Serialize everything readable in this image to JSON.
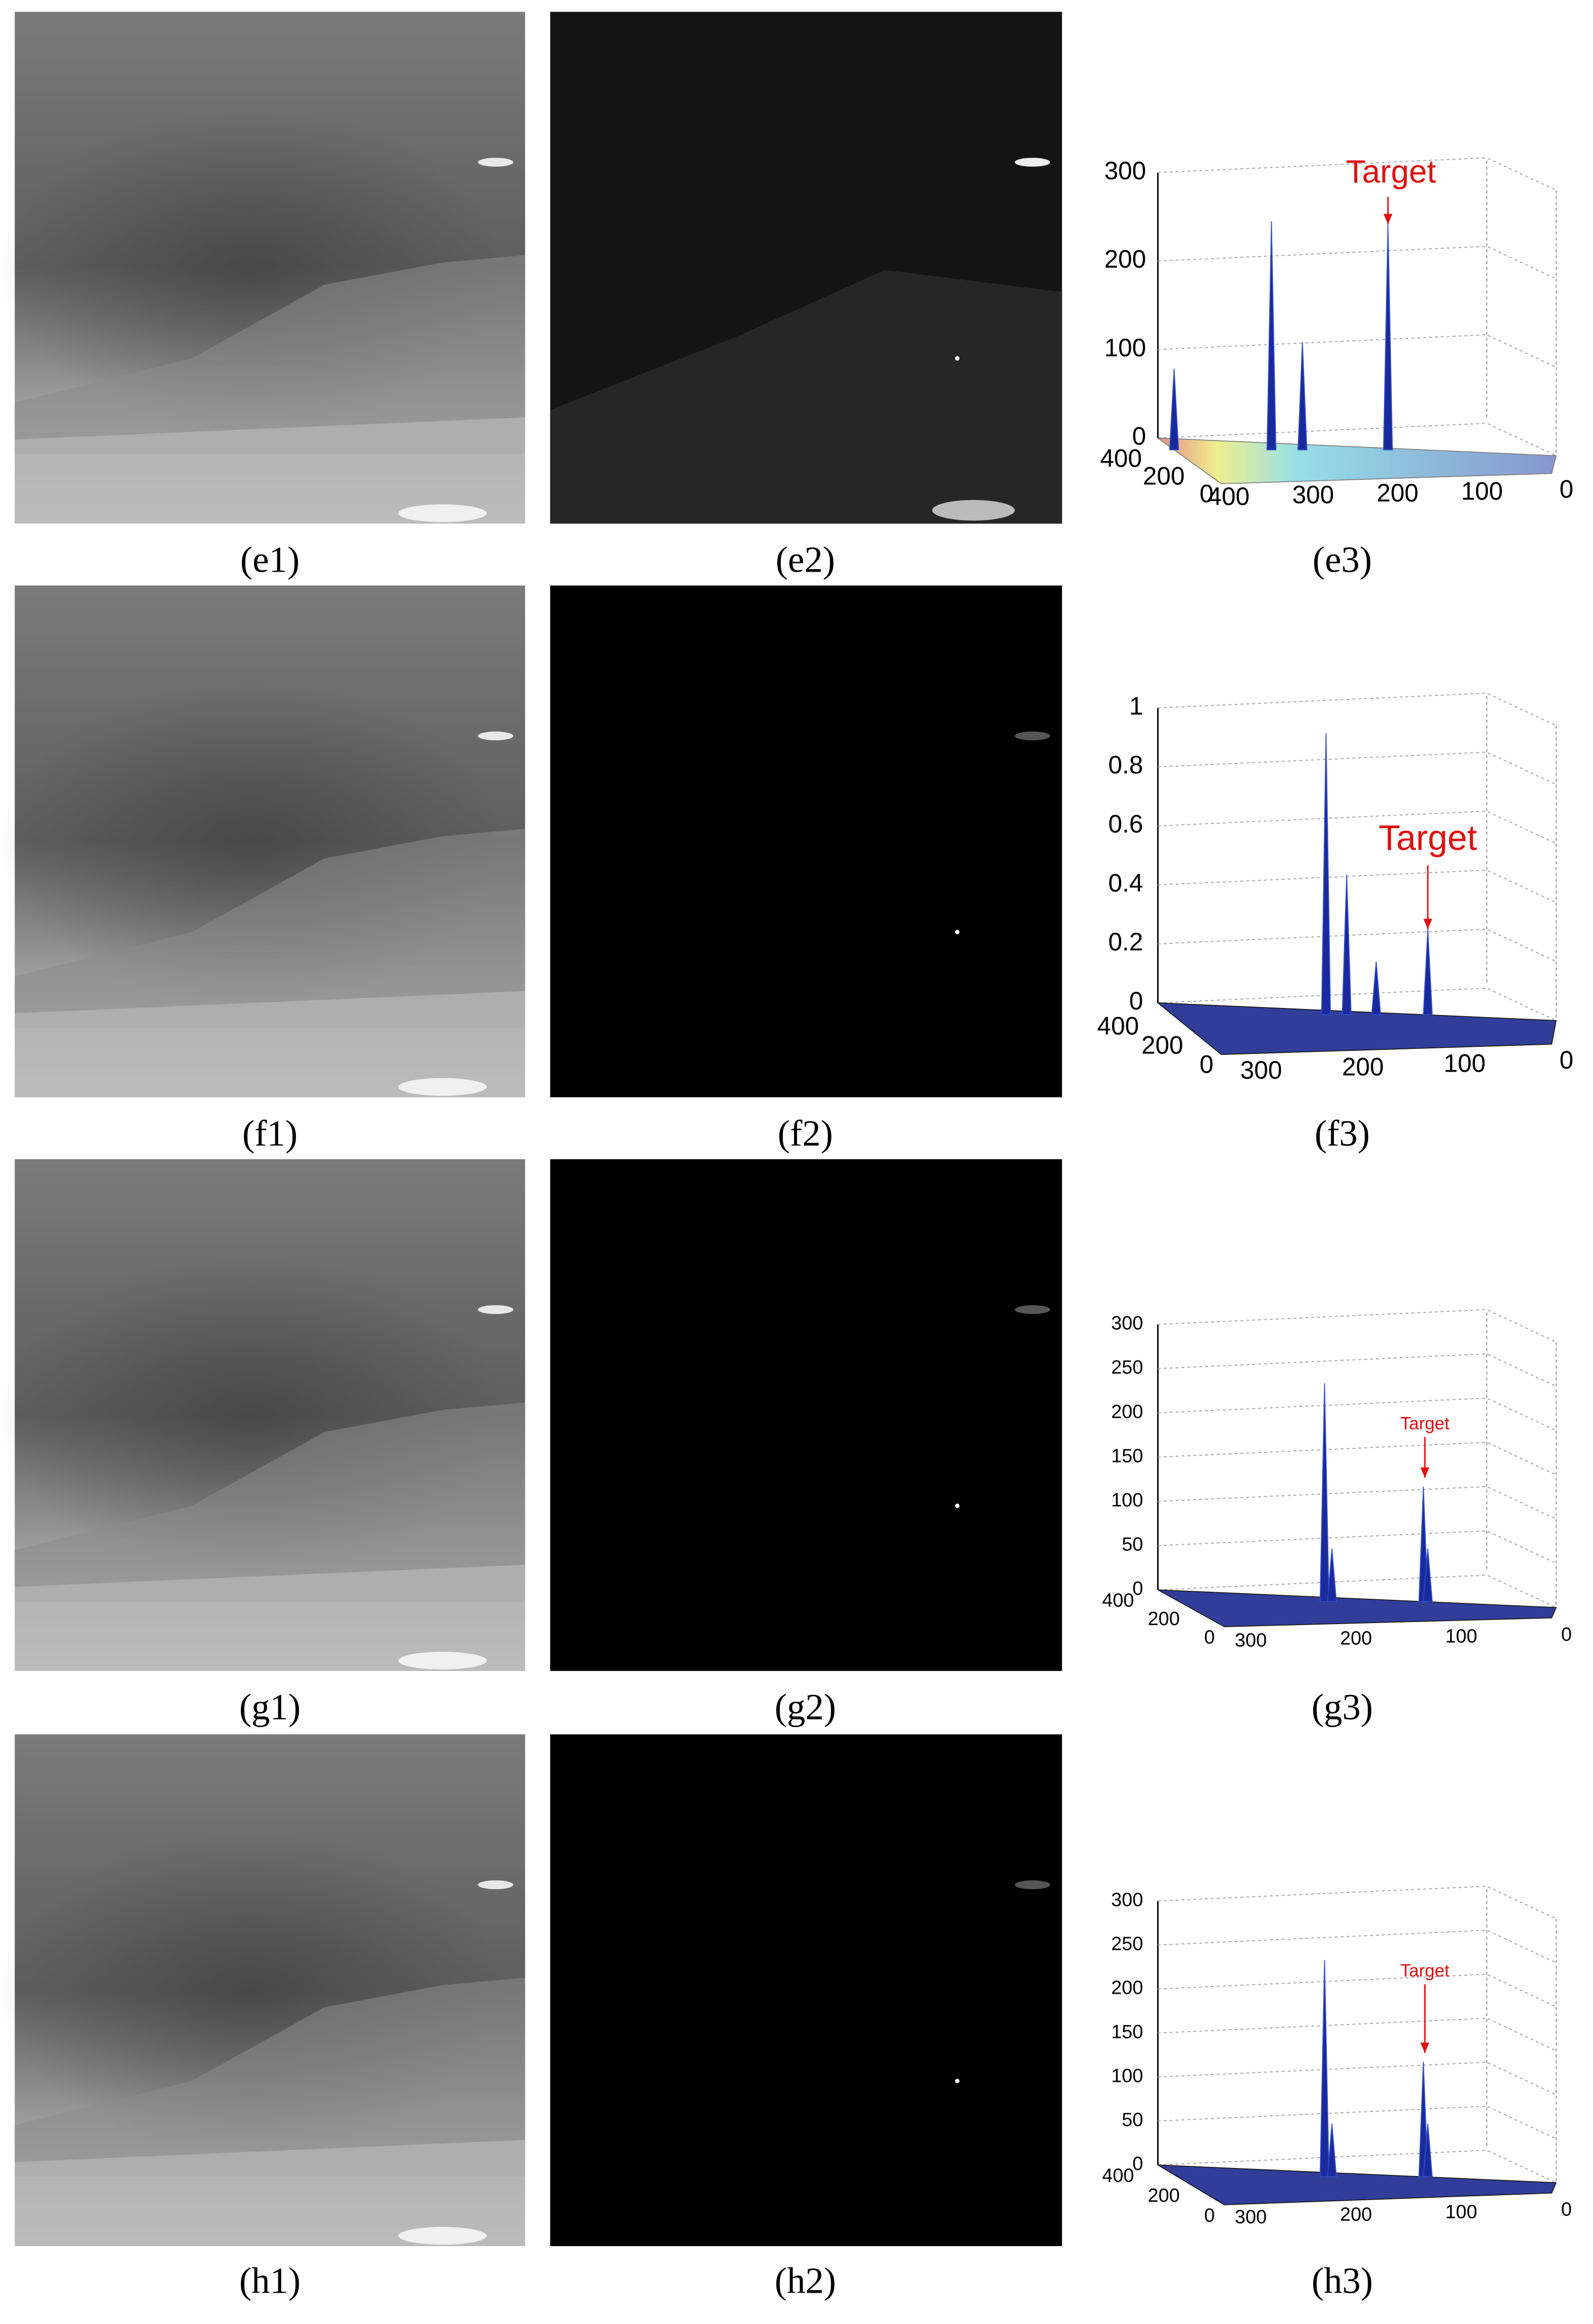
{
  "panels": [
    [
      "(e1)",
      "(e2)",
      "(e3)"
    ],
    [
      "(f1)",
      "(f2)",
      "(f3)"
    ],
    [
      "(g1)",
      "(g2)",
      "(g3)"
    ],
    [
      "(h1)",
      "(h2)",
      "(h3)"
    ]
  ],
  "plots": [
    {
      "zticks": [
        300,
        200,
        100,
        0
      ],
      "xticks": [
        400,
        300,
        200,
        100,
        0
      ],
      "yticks": [
        400,
        200,
        0
      ],
      "annotation": "Target"
    },
    {
      "zticks": [
        1,
        0.8,
        0.6,
        0.4,
        0.2,
        0
      ],
      "xticks": [
        300,
        200,
        100,
        0
      ],
      "yticks": [
        400,
        200,
        0
      ],
      "annotation": "Target"
    },
    {
      "zticks": [
        300,
        250,
        200,
        150,
        100,
        50,
        0
      ],
      "xticks": [
        300,
        200,
        100,
        0
      ],
      "yticks": [
        400,
        200,
        0
      ],
      "annotation": "Target"
    },
    {
      "zticks": [
        300,
        250,
        200,
        150,
        100,
        50,
        0
      ],
      "xticks": [
        300,
        200,
        100,
        0
      ],
      "yticks": [
        400,
        200,
        0
      ],
      "annotation": "Target"
    }
  ]
}
